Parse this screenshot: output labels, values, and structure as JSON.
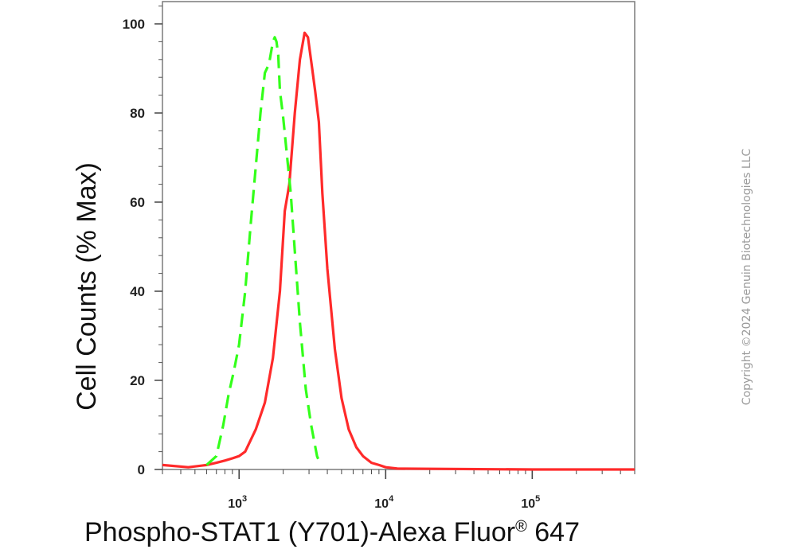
{
  "chart_data": {
    "type": "line",
    "xlabel": "Phospho-STAT1 (Y701)-Alexa Fluor",
    "xlabel_superscript": "®",
    "xlabel_suffix": " 647",
    "ylabel": "Cell Counts (% Max)",
    "x_scale": "log",
    "xlim": [
      300,
      500000
    ],
    "ylim": [
      0,
      105
    ],
    "x_ticks": [
      {
        "value": 1000,
        "base": "10",
        "exp": "3"
      },
      {
        "value": 10000,
        "base": "10",
        "exp": "4"
      },
      {
        "value": 100000,
        "base": "10",
        "exp": "5"
      }
    ],
    "y_ticks": [
      0,
      20,
      40,
      60,
      80,
      100
    ],
    "grid": false,
    "series": [
      {
        "color": "#ff2a2a",
        "style": "solid",
        "x": [
          300,
          450,
          600,
          700,
          800,
          900,
          1000,
          1100,
          1300,
          1500,
          1700,
          1900,
          2050,
          2200,
          2400,
          2600,
          2800,
          2950,
          3150,
          3300,
          3500,
          3700,
          4000,
          4500,
          5000,
          5600,
          6300,
          7000,
          8000,
          9000,
          10000,
          12000,
          100000,
          500000
        ],
        "y": [
          1,
          0.5,
          1,
          1.5,
          2,
          2.5,
          3,
          4,
          9,
          15,
          25,
          40,
          58,
          64,
          80,
          92,
          98,
          97,
          90,
          85,
          78,
          62,
          45,
          27,
          16,
          9,
          5,
          3,
          1.5,
          1,
          0.5,
          0.2,
          0,
          0
        ]
      },
      {
        "color": "#33ff1a",
        "style": "dashed",
        "x": [
          600,
          700,
          780,
          850,
          920,
          1000,
          1100,
          1200,
          1300,
          1400,
          1500,
          1600,
          1700,
          1750,
          1800,
          1850,
          1900,
          2000,
          2100,
          2250,
          2400,
          2600,
          2850,
          3100,
          3400,
          3600
        ],
        "y": [
          1,
          3,
          10,
          17,
          22,
          28,
          40,
          55,
          68,
          80,
          89,
          91,
          96,
          97,
          96,
          93,
          85,
          79,
          72,
          62,
          49,
          33,
          18,
          10,
          3,
          1
        ]
      }
    ]
  },
  "copyright": "Copyright ©2024 Genuin Biotechnologies LLC"
}
